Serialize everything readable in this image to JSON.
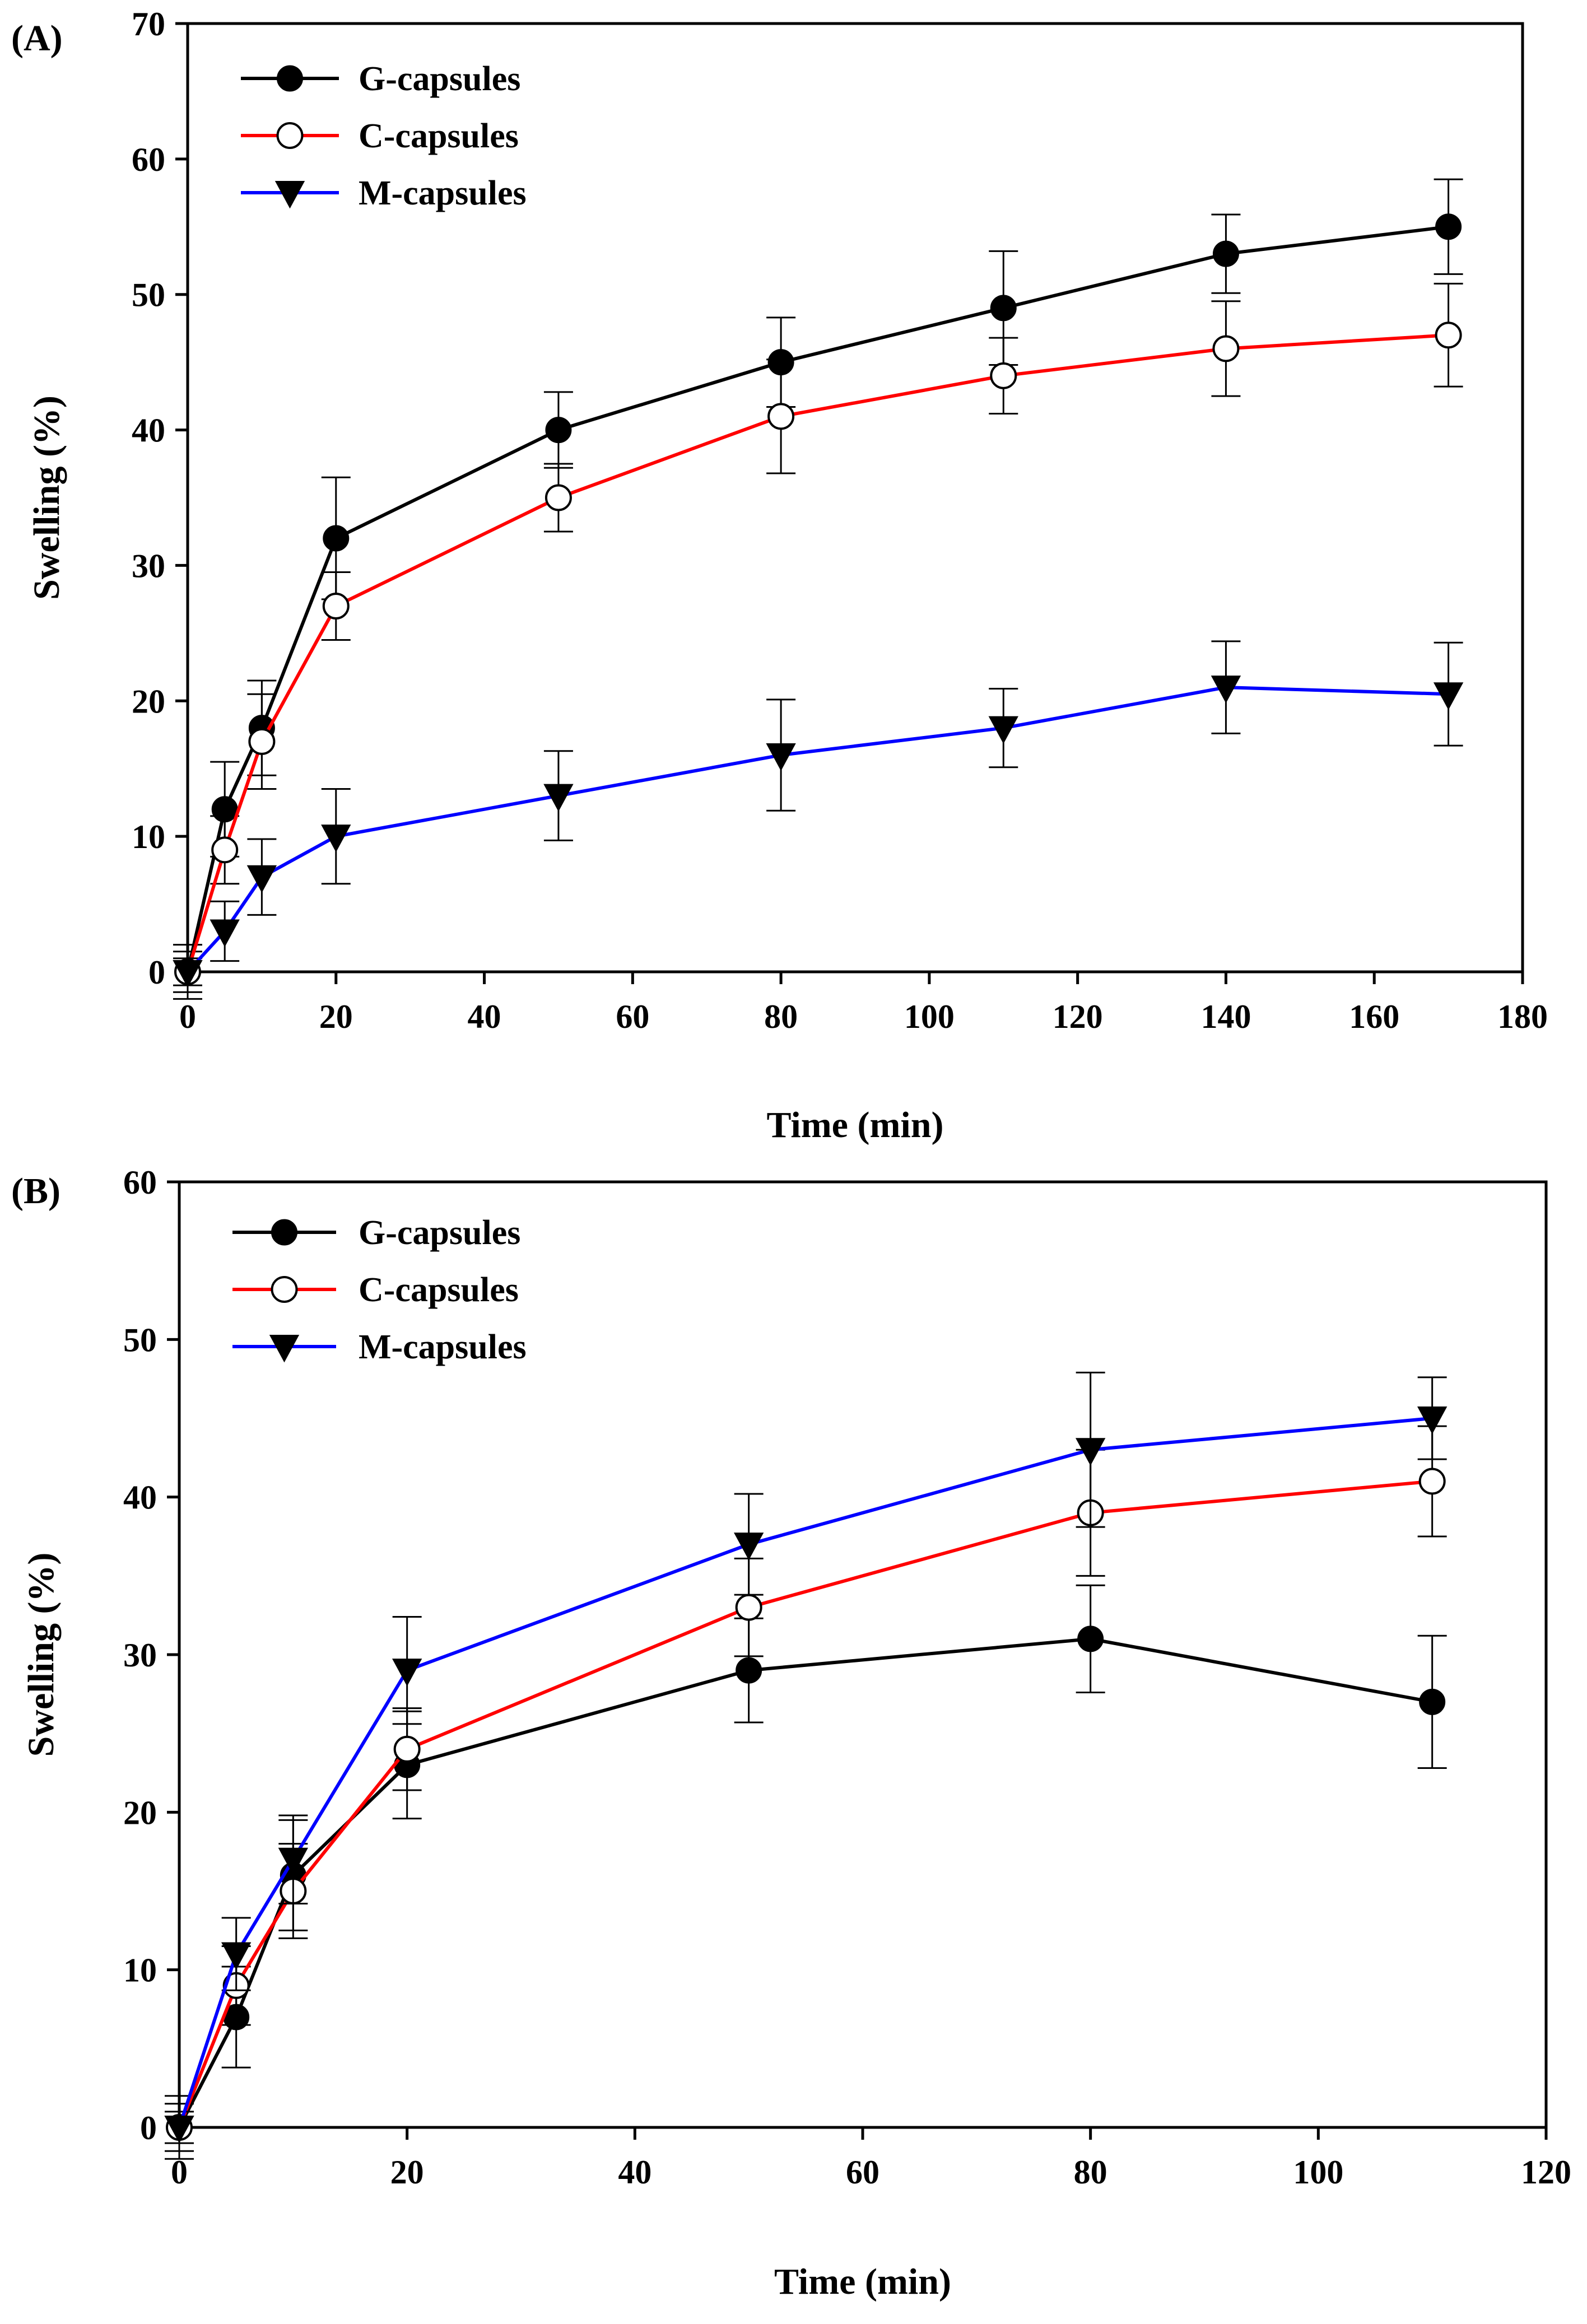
{
  "chart_data": [
    {
      "type": "line",
      "panel_label": "(A)",
      "xlabel": "Time (min)",
      "ylabel": "Swelling (%)",
      "xlim": [
        0,
        180
      ],
      "ylim": [
        0,
        70
      ],
      "xticks": [
        0,
        20,
        40,
        60,
        80,
        100,
        120,
        140,
        160,
        180
      ],
      "yticks": [
        0,
        10,
        20,
        30,
        40,
        50,
        60,
        70
      ],
      "legend_position": "top-left",
      "series": [
        {
          "name": "G-capsules",
          "color": "#000000",
          "marker": "filled-circle",
          "x": [
            0,
            5,
            10,
            20,
            50,
            80,
            110,
            140,
            170
          ],
          "y": [
            0,
            12,
            18,
            32,
            40,
            45,
            49,
            53,
            55
          ],
          "err": [
            2,
            3.5,
            3.5,
            4.5,
            2.8,
            3.3,
            4.2,
            2.9,
            3.5
          ]
        },
        {
          "name": "C-capsules",
          "color": "#ff0000",
          "marker": "open-circle",
          "x": [
            0,
            5,
            10,
            20,
            50,
            80,
            110,
            140,
            170
          ],
          "y": [
            0,
            9,
            17,
            27,
            35,
            41,
            44,
            46,
            47
          ],
          "err": [
            1.5,
            2.5,
            3.5,
            2.5,
            2.5,
            4.2,
            2.8,
            3.5,
            3.8
          ]
        },
        {
          "name": "M-capsules",
          "color": "#0000ff",
          "marker": "filled-triangle-down",
          "x": [
            0,
            5,
            10,
            20,
            50,
            80,
            110,
            140,
            170
          ],
          "y": [
            0,
            3,
            7,
            10,
            13,
            16,
            18,
            21,
            20.5
          ],
          "err": [
            1,
            2.2,
            2.8,
            3.5,
            3.3,
            4.1,
            2.9,
            3.4,
            3.8
          ]
        }
      ]
    },
    {
      "type": "line",
      "panel_label": "(B)",
      "xlabel": "Time (min)",
      "ylabel": "Swelling (%)",
      "xlim": [
        0,
        120
      ],
      "ylim": [
        0,
        60
      ],
      "xticks": [
        0,
        20,
        40,
        60,
        80,
        100,
        120
      ],
      "yticks": [
        0,
        10,
        20,
        30,
        40,
        50,
        60
      ],
      "legend_position": "top-left",
      "series": [
        {
          "name": "G-capsules",
          "color": "#000000",
          "marker": "filled-circle",
          "x": [
            0,
            5,
            10,
            20,
            50,
            80,
            110
          ],
          "y": [
            0,
            7,
            16,
            23,
            29,
            31,
            27
          ],
          "err": [
            2,
            3.2,
            3.5,
            3.4,
            3.3,
            3.4,
            4.2
          ]
        },
        {
          "name": "C-capsules",
          "color": "#ff0000",
          "marker": "open-circle",
          "x": [
            0,
            5,
            10,
            20,
            50,
            80,
            110
          ],
          "y": [
            0,
            9,
            15,
            24,
            33,
            39,
            41
          ],
          "err": [
            1.5,
            2.5,
            3,
            2.6,
            3.1,
            4,
            3.5
          ]
        },
        {
          "name": "M-capsules",
          "color": "#0000ff",
          "marker": "filled-triangle-down",
          "x": [
            0,
            5,
            10,
            20,
            50,
            80,
            110
          ],
          "y": [
            0,
            11,
            17,
            29,
            37,
            43,
            45
          ],
          "err": [
            1,
            2.3,
            2.8,
            3.4,
            3.2,
            4.9,
            2.6
          ]
        }
      ]
    }
  ]
}
